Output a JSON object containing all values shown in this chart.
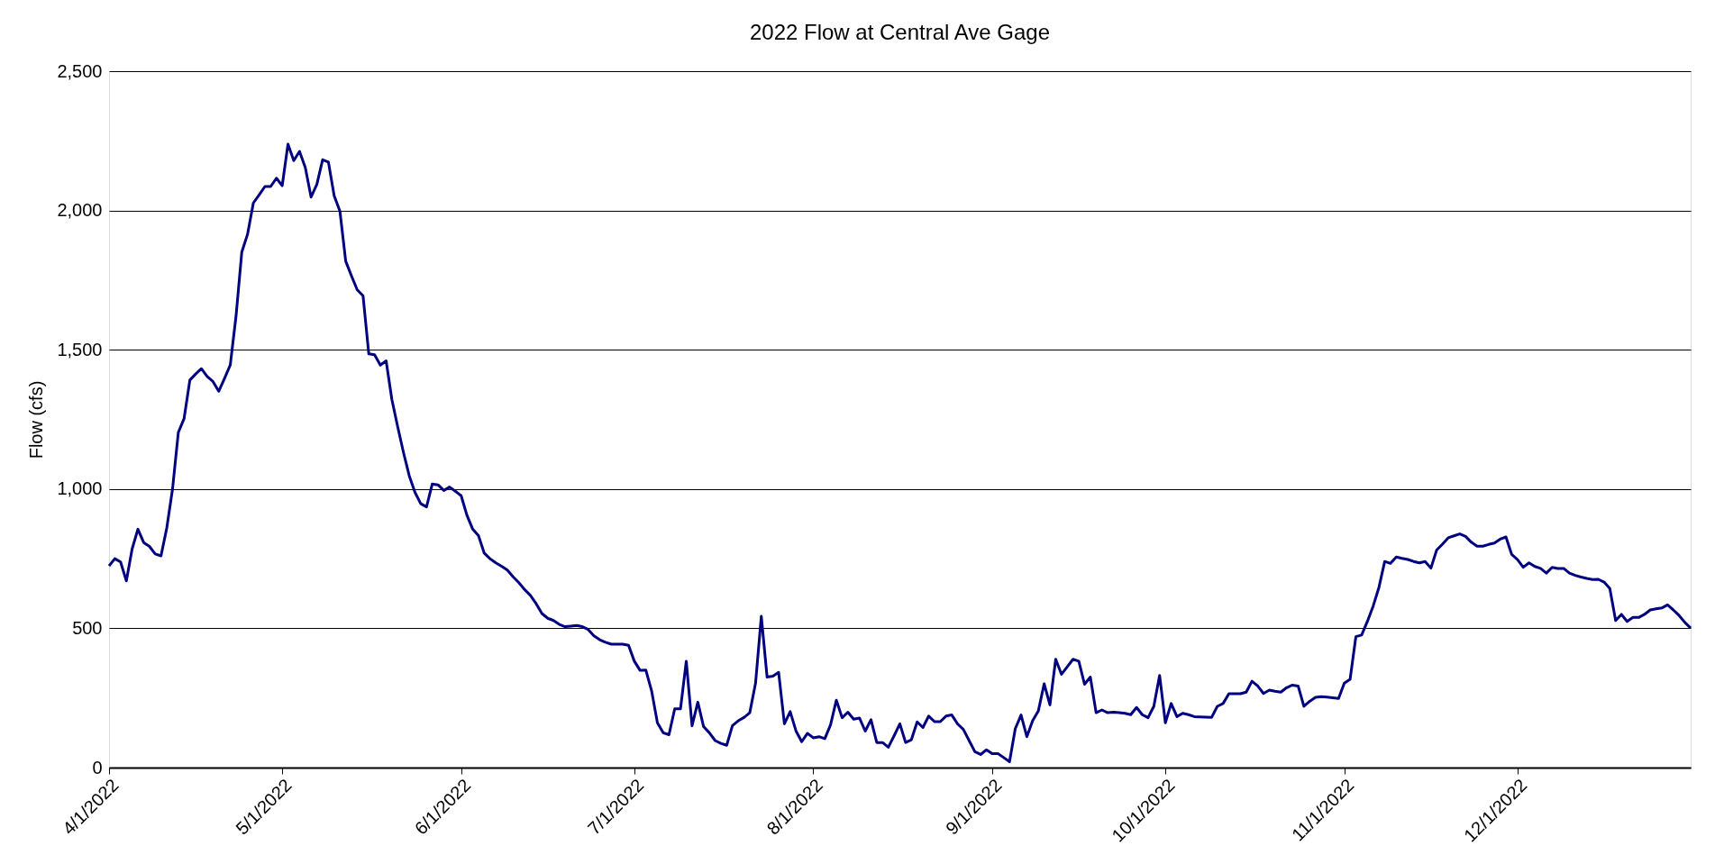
{
  "chart_data": {
    "type": "line",
    "title": "2022 Flow at Central Ave Gage",
    "ylabel": "Flow (cfs)",
    "x": [
      "2022-04-01",
      "2022-04-02",
      "2022-04-03",
      "2022-04-04",
      "2022-04-05",
      "2022-04-06",
      "2022-04-07",
      "2022-04-08",
      "2022-04-09",
      "2022-04-10",
      "2022-04-11",
      "2022-04-12",
      "2022-04-13",
      "2022-04-14",
      "2022-04-15",
      "2022-04-16",
      "2022-04-17",
      "2022-04-18",
      "2022-04-19",
      "2022-04-20",
      "2022-04-21",
      "2022-04-22",
      "2022-04-23",
      "2022-04-24",
      "2022-04-25",
      "2022-04-26",
      "2022-04-27",
      "2022-04-28",
      "2022-04-29",
      "2022-04-30",
      "2022-05-01",
      "2022-05-02",
      "2022-05-03",
      "2022-05-04",
      "2022-05-05",
      "2022-05-06",
      "2022-05-07",
      "2022-05-08",
      "2022-05-09",
      "2022-05-10",
      "2022-05-11",
      "2022-05-12",
      "2022-05-13",
      "2022-05-14",
      "2022-05-15",
      "2022-05-16",
      "2022-05-17",
      "2022-05-18",
      "2022-05-19",
      "2022-05-20",
      "2022-05-21",
      "2022-05-22",
      "2022-05-23",
      "2022-05-24",
      "2022-05-25",
      "2022-05-26",
      "2022-05-27",
      "2022-05-28",
      "2022-05-29",
      "2022-05-30",
      "2022-05-31",
      "2022-06-01",
      "2022-06-02",
      "2022-06-03",
      "2022-06-04",
      "2022-06-05",
      "2022-06-06",
      "2022-06-07",
      "2022-06-08",
      "2022-06-09",
      "2022-06-10",
      "2022-06-11",
      "2022-06-12",
      "2022-06-13",
      "2022-06-14",
      "2022-06-15",
      "2022-06-16",
      "2022-06-17",
      "2022-06-18",
      "2022-06-19",
      "2022-06-20",
      "2022-06-21",
      "2022-06-22",
      "2022-06-23",
      "2022-06-24",
      "2022-06-25",
      "2022-06-26",
      "2022-06-27",
      "2022-06-28",
      "2022-06-29",
      "2022-06-30",
      "2022-07-01",
      "2022-07-02",
      "2022-07-03",
      "2022-07-04",
      "2022-07-05",
      "2022-07-06",
      "2022-07-07",
      "2022-07-08",
      "2022-07-09",
      "2022-07-10",
      "2022-07-11",
      "2022-07-12",
      "2022-07-13",
      "2022-07-14",
      "2022-07-15",
      "2022-07-16",
      "2022-07-17",
      "2022-07-18",
      "2022-07-19",
      "2022-07-20",
      "2022-07-21",
      "2022-07-22",
      "2022-07-23",
      "2022-07-24",
      "2022-07-25",
      "2022-07-26",
      "2022-07-27",
      "2022-07-28",
      "2022-07-29",
      "2022-07-30",
      "2022-07-31",
      "2022-08-01",
      "2022-08-02",
      "2022-08-03",
      "2022-08-04",
      "2022-08-05",
      "2022-08-06",
      "2022-08-07",
      "2022-08-08",
      "2022-08-09",
      "2022-08-10",
      "2022-08-11",
      "2022-08-12",
      "2022-08-13",
      "2022-08-14",
      "2022-08-15",
      "2022-08-16",
      "2022-08-17",
      "2022-08-18",
      "2022-08-19",
      "2022-08-20",
      "2022-08-21",
      "2022-08-22",
      "2022-08-23",
      "2022-08-24",
      "2022-08-25",
      "2022-08-26",
      "2022-08-27",
      "2022-08-28",
      "2022-08-29",
      "2022-08-30",
      "2022-08-31",
      "2022-09-01",
      "2022-09-02",
      "2022-09-03",
      "2022-09-04",
      "2022-09-05",
      "2022-09-06",
      "2022-09-07",
      "2022-09-08",
      "2022-09-09",
      "2022-09-10",
      "2022-09-11",
      "2022-09-12",
      "2022-09-13",
      "2022-09-14",
      "2022-09-15",
      "2022-09-16",
      "2022-09-17",
      "2022-09-18",
      "2022-09-19",
      "2022-09-20",
      "2022-09-21",
      "2022-09-22",
      "2022-09-23",
      "2022-09-24",
      "2022-09-25",
      "2022-09-26",
      "2022-09-27",
      "2022-09-28",
      "2022-09-29",
      "2022-09-30",
      "2022-10-01",
      "2022-10-02",
      "2022-10-03",
      "2022-10-04",
      "2022-10-05",
      "2022-10-06",
      "2022-10-07",
      "2022-10-08",
      "2022-10-09",
      "2022-10-10",
      "2022-10-11",
      "2022-10-12",
      "2022-10-13",
      "2022-10-14",
      "2022-10-15",
      "2022-10-16",
      "2022-10-17",
      "2022-10-18",
      "2022-10-19",
      "2022-10-20",
      "2022-10-21",
      "2022-10-22",
      "2022-10-23",
      "2022-10-24",
      "2022-10-25",
      "2022-10-26",
      "2022-10-27",
      "2022-10-28",
      "2022-10-29",
      "2022-10-30",
      "2022-10-31",
      "2022-11-01",
      "2022-11-02",
      "2022-11-03",
      "2022-11-04",
      "2022-11-05",
      "2022-11-06",
      "2022-11-07",
      "2022-11-08",
      "2022-11-09",
      "2022-11-10",
      "2022-11-11",
      "2022-11-12",
      "2022-11-13",
      "2022-11-14",
      "2022-11-15",
      "2022-11-16",
      "2022-11-17",
      "2022-11-18",
      "2022-11-19",
      "2022-11-20",
      "2022-11-21",
      "2022-11-22",
      "2022-11-23",
      "2022-11-24",
      "2022-11-25",
      "2022-11-26",
      "2022-11-27",
      "2022-11-28",
      "2022-11-29",
      "2022-11-30",
      "2022-12-01",
      "2022-12-02",
      "2022-12-03",
      "2022-12-04",
      "2022-12-05",
      "2022-12-06",
      "2022-12-07",
      "2022-12-08",
      "2022-12-09",
      "2022-12-10",
      "2022-12-11",
      "2022-12-12",
      "2022-12-13",
      "2022-12-14",
      "2022-12-15",
      "2022-12-16",
      "2022-12-17",
      "2022-12-18",
      "2022-12-19",
      "2022-12-20",
      "2022-12-21",
      "2022-12-22",
      "2022-12-23",
      "2022-12-24",
      "2022-12-25",
      "2022-12-26",
      "2022-12-27",
      "2022-12-28",
      "2022-12-29",
      "2022-12-30",
      "2022-12-31"
    ],
    "series": [
      {
        "color": "#000080",
        "values": [
          724,
          750,
          738,
          670,
          785,
          856,
          808,
          794,
          767,
          760,
          860,
          1000,
          1203,
          1253,
          1391,
          1413,
          1432,
          1404,
          1386,
          1351,
          1397,
          1445,
          1621,
          1851,
          1915,
          2027,
          2056,
          2086,
          2086,
          2116,
          2089,
          2238,
          2179,
          2212,
          2154,
          2048,
          2094,
          2182,
          2174,
          2053,
          1997,
          1818,
          1765,
          1715,
          1694,
          1485,
          1482,
          1445,
          1460,
          1321,
          1224,
          1132,
          1048,
          988,
          947,
          936,
          1018,
          1015,
          995,
          1007,
          992,
          976,
          906,
          856,
          833,
          770,
          750,
          735,
          723,
          709,
          685,
          664,
          639,
          618,
          588,
          553,
          536,
          528,
          514,
          506,
          508,
          510,
          506,
          496,
          473,
          459,
          450,
          443,
          443,
          443,
          439,
          382,
          349,
          350,
          275,
          161,
          125,
          118,
          211,
          211,
          382,
          150,
          235,
          147,
          125,
          97,
          87,
          80,
          151,
          168,
          180,
          197,
          303,
          543,
          325,
          328,
          342,
          157,
          201,
          132,
          93,
          123,
          107,
          111,
          104,
          154,
          242,
          179,
          199,
          174,
          178,
          131,
          172,
          90,
          90,
          73,
          114,
          157,
          90,
          100,
          164,
          144,
          185,
          165,
          165,
          185,
          189,
          157,
          137,
          97,
          57,
          47,
          64,
          50,
          50,
          36,
          21,
          140,
          189,
          111,
          168,
          204,
          301,
          225,
          389,
          335,
          362,
          389,
          382,
          299,
          325,
          197,
          207,
          197,
          199,
          197,
          195,
          190,
          216,
          190,
          179,
          220,
          331,
          161,
          230,
          183,
          195,
          190,
          183,
          182,
          181,
          180,
          220,
          230,
          265,
          265,
          265,
          271,
          310,
          293,
          266,
          278,
          274,
          271,
          287,
          296,
          293,
          220,
          238,
          252,
          255,
          253,
          251,
          248,
          303,
          317,
          470,
          476,
          525,
          580,
          647,
          740,
          733,
          756,
          751,
          747,
          740,
          735,
          740,
          716,
          781,
          802,
          825,
          832,
          839,
          830,
          809,
          795,
          795,
          801,
          806,
          820,
          828,
          765,
          747,
          719,
          735,
          722,
          715,
          698,
          719,
          715,
          715,
          698,
          690,
          684,
          679,
          675,
          676,
          666,
          643,
          528,
          550,
          525,
          539,
          539,
          550,
          566,
          570,
          573,
          584,
          566,
          546,
          521,
          501
        ]
      }
    ],
    "xlim": [
      "2022-04-01",
      "2022-12-31"
    ],
    "xticks": [
      {
        "value": "2022-04-01",
        "label": "4/1/2022"
      },
      {
        "value": "2022-05-01",
        "label": "5/1/2022"
      },
      {
        "value": "2022-06-01",
        "label": "6/1/2022"
      },
      {
        "value": "2022-07-01",
        "label": "7/1/2022"
      },
      {
        "value": "2022-08-01",
        "label": "8/1/2022"
      },
      {
        "value": "2022-09-01",
        "label": "9/1/2022"
      },
      {
        "value": "2022-10-01",
        "label": "10/1/2022"
      },
      {
        "value": "2022-11-01",
        "label": "11/1/2022"
      },
      {
        "value": "2022-12-01",
        "label": "12/1/2022"
      }
    ],
    "ylim": [
      0,
      2500
    ],
    "yticks": [
      {
        "value": 0,
        "label": "0"
      },
      {
        "value": 500,
        "label": "500"
      },
      {
        "value": 1000,
        "label": "1,000"
      },
      {
        "value": 1500,
        "label": "1,500"
      },
      {
        "value": 2000,
        "label": "2,000"
      },
      {
        "value": 2500,
        "label": "2,500"
      }
    ],
    "grid": "y",
    "marker": "none",
    "line_style": "solid"
  }
}
